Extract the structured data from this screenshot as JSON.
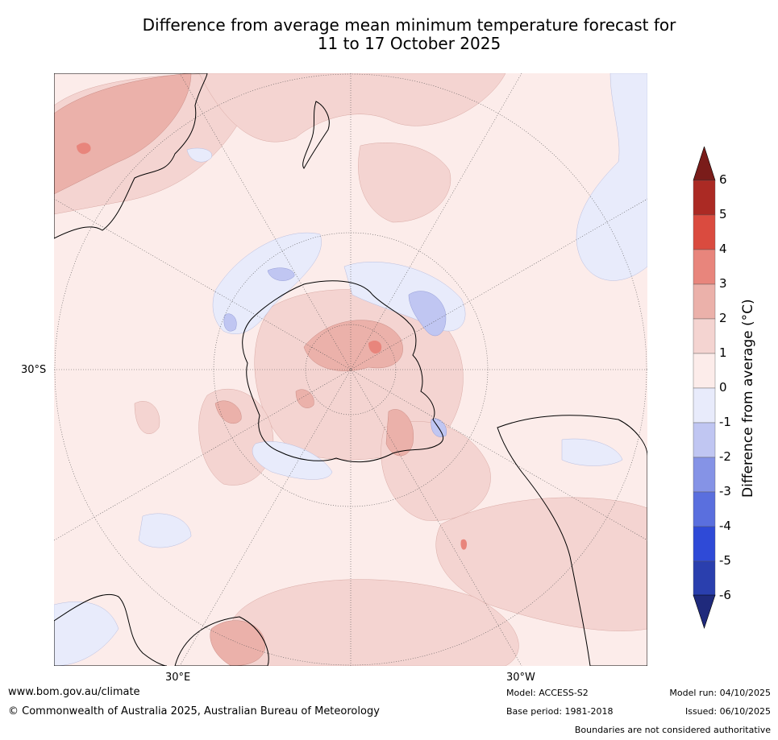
{
  "title": {
    "line1": "Difference from average mean minimum temperature forecast for",
    "line2": "11 to 17 October 2025"
  },
  "map": {
    "projection": "south-polar-stereographic",
    "lat_label": "30°S",
    "lon_labels": {
      "east": "30°E",
      "west": "30°W"
    }
  },
  "colorbar": {
    "title": "Difference from average (°C)",
    "ticks": [
      "6",
      "5",
      "4",
      "3",
      "2",
      "1",
      "0",
      "-1",
      "-2",
      "-3",
      "-4",
      "-5",
      "-6"
    ],
    "colors": {
      "above_6": "#7a1c1a",
      "5_to_6": "#ab2a24",
      "4_to_5": "#da4b3f",
      "3_to_4": "#e8857c",
      "2_to_3": "#ebb1aa",
      "1_to_2": "#f4d4d1",
      "0_to_1": "#fcecea",
      "m1_to_0": "#e8ebfb",
      "m2_to_m1": "#c0c6f2",
      "m3_to_m2": "#8593e6",
      "m4_to_m3": "#5a6fde",
      "m5_to_m4": "#2f4ad7",
      "m6_to_m5": "#2a3fae",
      "below_m6": "#1f2a7c"
    }
  },
  "footer": {
    "url": "www.bom.gov.au/climate",
    "copyright": "© Commonwealth of Australia 2025, Australian Bureau of Meteorology",
    "model": "Model: ACCESS-S2",
    "base_period": "Base period: 1981-2018",
    "model_run": "Model run: 04/10/2025",
    "issued": "Issued: 06/10/2025",
    "disclaimer": "Boundaries are not considered authoritative"
  }
}
